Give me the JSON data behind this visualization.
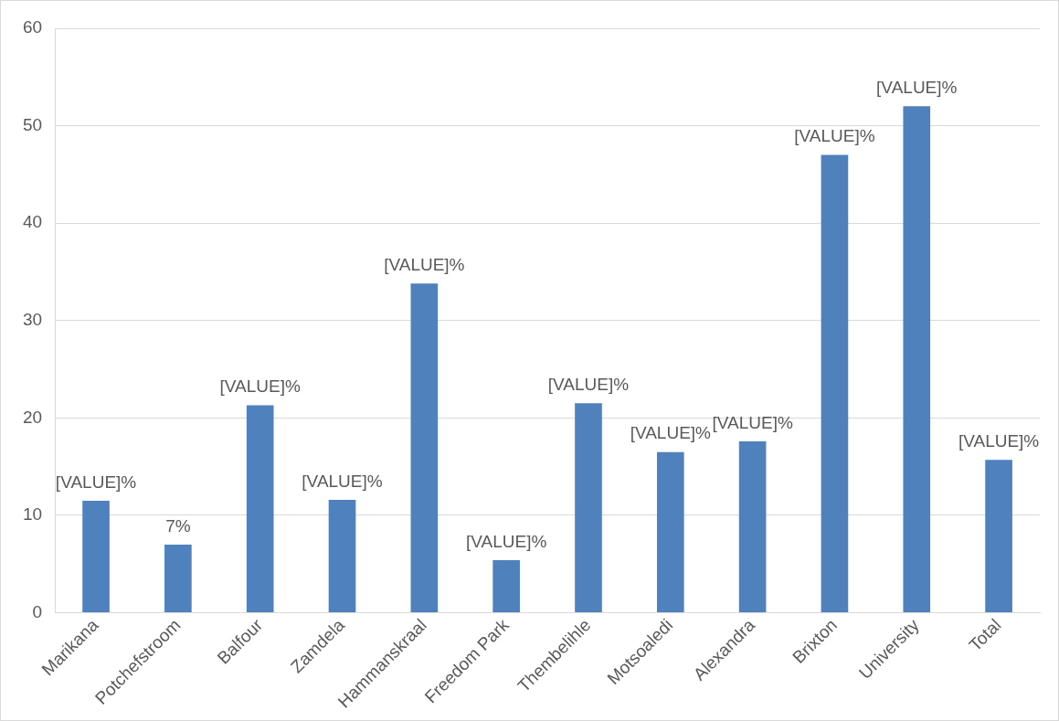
{
  "chart_data": {
    "type": "bar",
    "categories": [
      "Marikana",
      "Potchefstroom",
      "Balfour",
      "Zamdela",
      "Hammanskraal",
      "Freedom Park",
      "Thembelihle",
      "Motsoaledi",
      "Alexandra",
      "Brixton",
      "University",
      "Total"
    ],
    "values": [
      11.5,
      7,
      21.3,
      11.6,
      33.8,
      5.4,
      21.5,
      16.5,
      17.6,
      47.0,
      52.0,
      15.7
    ],
    "value_labels": [
      "[VALUE]%",
      "7%",
      "[VALUE]%",
      "[VALUE]%",
      "[VALUE]%",
      "[VALUE]%",
      "[VALUE]%",
      "[VALUE]%",
      "[VALUE]%",
      "[VALUE]%",
      "[VALUE]%",
      "[VALUE]%"
    ],
    "color": "#4f81bd",
    "ylim": [
      0,
      60
    ],
    "yticks": [
      0,
      10,
      20,
      30,
      40,
      50,
      60
    ],
    "grid": "y",
    "legend": false
  }
}
